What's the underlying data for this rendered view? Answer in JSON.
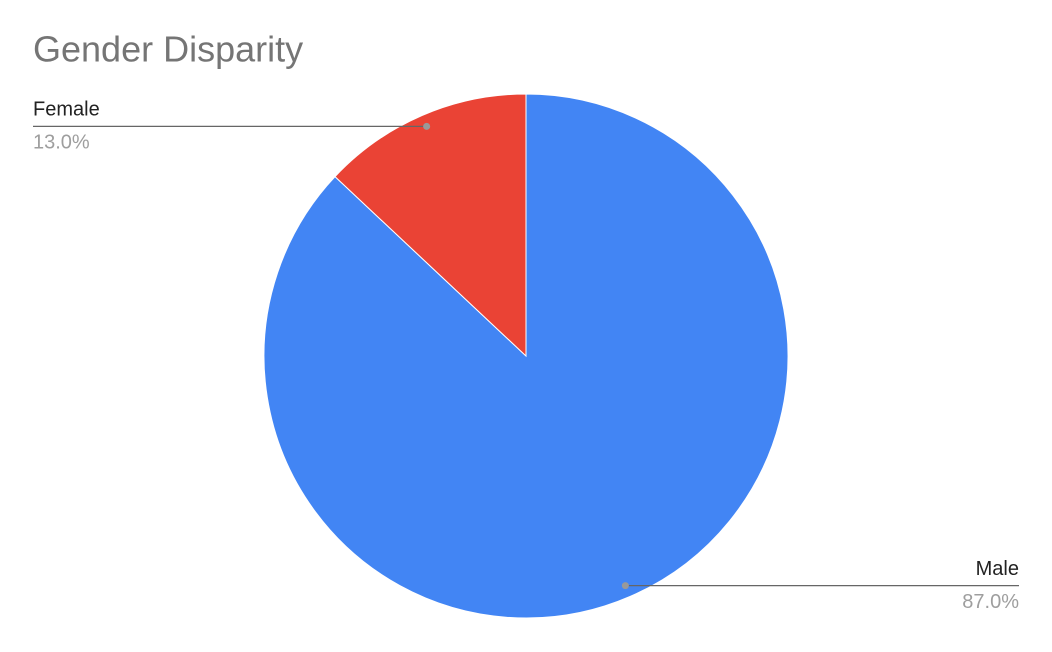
{
  "chart_data": {
    "type": "pie",
    "title": "Gender Disparity",
    "categories": [
      "Male",
      "Female"
    ],
    "values": [
      87,
      13
    ],
    "value_labels": [
      "87.0%",
      "13.0%"
    ],
    "colors": [
      "#4285f4",
      "#ea4335"
    ]
  }
}
